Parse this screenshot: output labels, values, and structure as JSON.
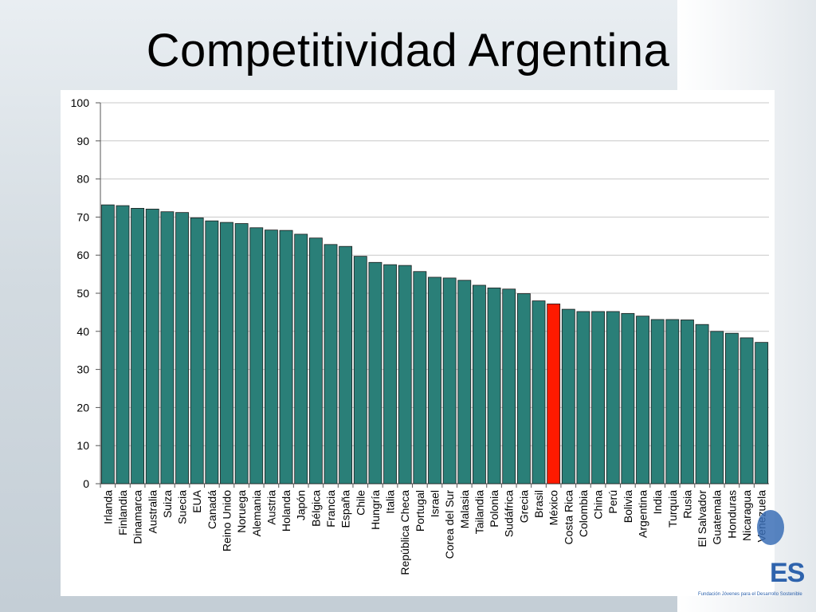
{
  "slide": {
    "title": "Competitividad Argentina"
  },
  "logo": {
    "text": "ES",
    "subtitle": "Fundación Jóvenes para el Desarrollo Sostenible"
  },
  "colors": {
    "bar": "#2a7f78",
    "highlight": "#ff1a00",
    "axis": "#555555",
    "grid": "#c8c8c8"
  },
  "chart_data": {
    "type": "bar",
    "title": "",
    "xlabel": "",
    "ylabel": "",
    "ylim": [
      0,
      100
    ],
    "yticks": [
      0,
      10,
      20,
      30,
      40,
      50,
      60,
      70,
      80,
      90,
      100
    ],
    "grid": true,
    "highlight_category": "México",
    "categories": [
      "Irlanda",
      "Finlandia",
      "Dinamarca",
      "Australia",
      "Suiza",
      "Suecia",
      "EUA",
      "Canadá",
      "Reino Unido",
      "Noruega",
      "Alemania",
      "Austria",
      "Holanda",
      "Japón",
      "Bélgica",
      "Francia",
      "España",
      "Chile",
      "Hungría",
      "Italia",
      "República Checa",
      "Portugal",
      "Israel",
      "Corea del Sur",
      "Malasia",
      "Tailandia",
      "Polonia",
      "Sudáfrica",
      "Grecia",
      "Brasil",
      "México",
      "Costa Rica",
      "Colombia",
      "China",
      "Perú",
      "Bolivia",
      "Argentina",
      "India",
      "Turquia",
      "Rusia",
      "El Salvador",
      "Guatemala",
      "Honduras",
      "Nicaragua",
      "Venezuela"
    ],
    "values": [
      73.2,
      73.0,
      72.3,
      72.1,
      71.4,
      71.2,
      69.8,
      69.0,
      68.6,
      68.3,
      67.2,
      66.6,
      66.5,
      65.5,
      64.5,
      62.8,
      62.3,
      59.7,
      58.1,
      57.5,
      57.3,
      55.7,
      54.2,
      54.0,
      53.4,
      52.1,
      51.4,
      51.1,
      49.9,
      48.0,
      47.2,
      45.8,
      45.2,
      45.2,
      45.2,
      44.7,
      44.0,
      43.1,
      43.1,
      43.0,
      41.8,
      40.0,
      39.5,
      38.3,
      37.1
    ]
  }
}
